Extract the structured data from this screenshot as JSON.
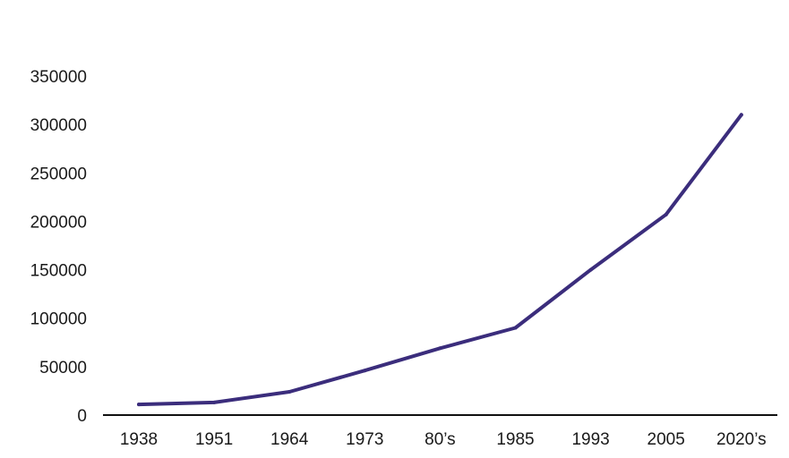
{
  "chart_data": {
    "type": "line",
    "title": "",
    "xlabel": "",
    "ylabel": "",
    "categories": [
      "1938",
      "1951",
      "1964",
      "1973",
      "80’s",
      "1985",
      "1993",
      "2005",
      "2020’s"
    ],
    "series": [
      {
        "values": [
          11000,
          13000,
          24000,
          46000,
          69000,
          90000,
          150000,
          207000,
          310000
        ]
      }
    ],
    "ylim": [
      0,
      350000
    ],
    "yticks": [
      "0",
      "50000",
      "100000",
      "150000",
      "200000",
      "250000",
      "300000",
      "350000"
    ],
    "grid": false,
    "legend": "none",
    "colors": {
      "line": "#3b2d7c",
      "axis": "#111111",
      "text": "#1a1a1a"
    }
  }
}
